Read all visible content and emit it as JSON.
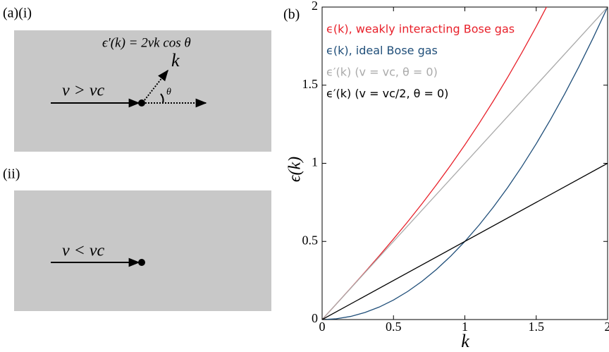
{
  "diagram": {
    "panel_a": "(a)(i)",
    "panel_ii": "(ii)",
    "formula": "ϵ′(k) = 2vk cos θ",
    "label_i": "v > vc",
    "label_k": "k",
    "label_theta": "θ",
    "label_ii": "v < vc"
  },
  "chart_data": {
    "type": "line",
    "panel": "(b)",
    "xlabel": "k",
    "ylabel": "ϵ(k)",
    "xlim": [
      0,
      2
    ],
    "ylim": [
      0,
      2
    ],
    "xticks": [
      0,
      0.5,
      1,
      1.5,
      2
    ],
    "yticks": [
      0,
      0.5,
      1,
      1.5,
      2
    ],
    "series": [
      {
        "name": "ϵ(k), weakly interacting Bose gas",
        "color": "#e8202a",
        "x": [
          0,
          0.1,
          0.2,
          0.3,
          0.4,
          0.5,
          0.6,
          0.7,
          0.8,
          0.9,
          1.0,
          1.1,
          1.2,
          1.3,
          1.4,
          1.5,
          1.6
        ],
        "values": [
          0,
          0.1001,
          0.201,
          0.3034,
          0.4079,
          0.5154,
          0.6264,
          0.7416,
          0.8616,
          0.9869,
          1.118,
          1.2554,
          1.3994,
          1.5505,
          1.7089,
          1.875,
          2.049
        ]
      },
      {
        "name": "ϵ(k), ideal Bose gas",
        "color": "#1f4e79",
        "x": [
          0,
          0.1,
          0.2,
          0.3,
          0.4,
          0.5,
          0.6,
          0.7,
          0.8,
          0.9,
          1.0,
          1.1,
          1.2,
          1.3,
          1.4,
          1.5,
          1.6,
          1.7,
          1.8,
          1.9,
          2.0
        ],
        "values": [
          0,
          0.005,
          0.02,
          0.045,
          0.08,
          0.125,
          0.18,
          0.245,
          0.32,
          0.405,
          0.5,
          0.605,
          0.72,
          0.845,
          0.98,
          1.125,
          1.28,
          1.445,
          1.62,
          1.805,
          2
        ]
      },
      {
        "name": "ϵ′(k) (v = vc, θ = 0)",
        "color": "#aaaaaa",
        "x": [
          0,
          2
        ],
        "values": [
          0,
          2
        ]
      },
      {
        "name": "ϵ′(k) (v = vc/2, θ = 0)",
        "color": "#000000",
        "x": [
          0,
          2
        ],
        "values": [
          0,
          1
        ]
      }
    ]
  }
}
